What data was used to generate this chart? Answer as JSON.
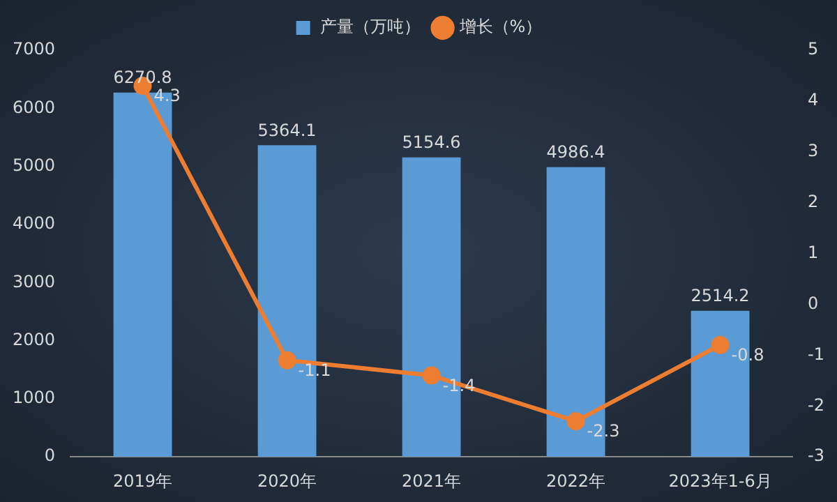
{
  "chart_data": {
    "type": "bar",
    "categories": [
      "2019年",
      "2020年",
      "2021年",
      "2022年",
      "2023年1-6月"
    ],
    "series": [
      {
        "name": "产量（万吨）",
        "color": "#5b9bd5",
        "values": [
          6270.8,
          5364.1,
          5154.6,
          4986.4,
          2514.2
        ]
      },
      {
        "name": "增长（%）",
        "type": "line",
        "axis": "y2",
        "color": "#ed7d31",
        "values": [
          4.3,
          -1.1,
          -1.4,
          -2.3,
          -0.8
        ]
      }
    ],
    "ylim": [
      0,
      7000
    ],
    "yticks": [
      0,
      1000,
      2000,
      3000,
      4000,
      5000,
      6000,
      7000
    ],
    "y2lim": [
      -3,
      5
    ],
    "y2ticks": [
      -3,
      -2,
      -1,
      0,
      1,
      2,
      3,
      4,
      5
    ],
    "legend": "top",
    "grid": false,
    "marker": "circle",
    "data_labels": true
  }
}
